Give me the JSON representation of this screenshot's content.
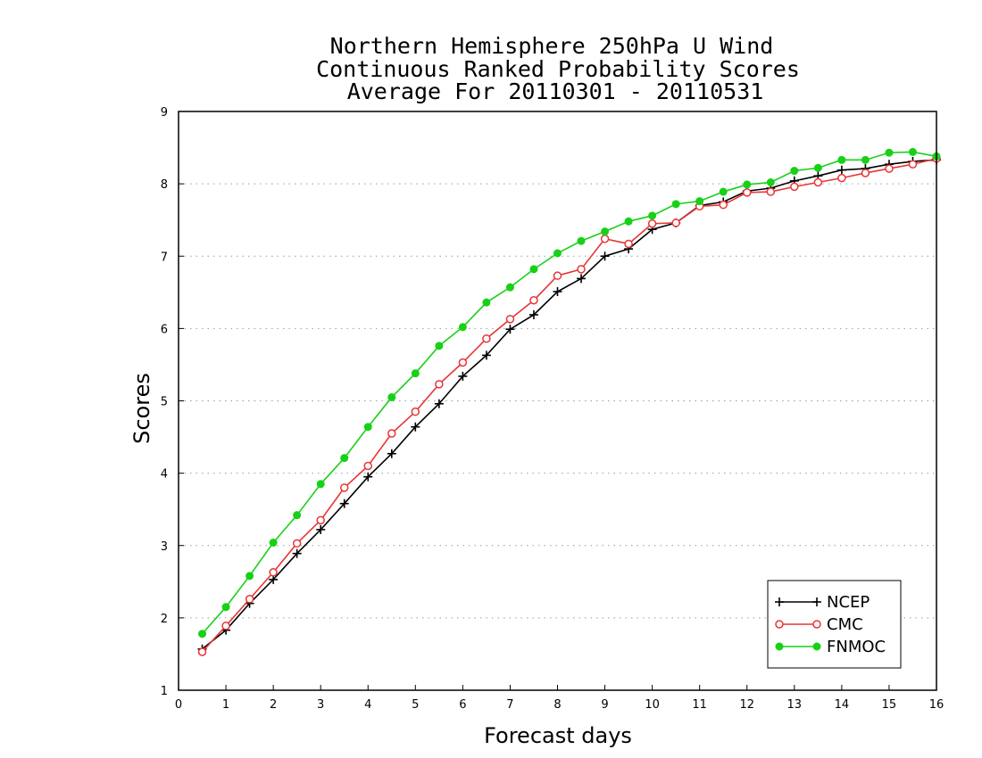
{
  "chart_data": {
    "type": "line",
    "title": [
      "Northern Hemisphere 250hPa U Wind",
      "Continuous Ranked Probability Scores",
      "Average For 20110301 - 20110531"
    ],
    "xlabel": "Forecast days",
    "ylabel": "Scores",
    "xlim": [
      0,
      16
    ],
    "ylim": [
      1,
      9
    ],
    "xticks": [
      "0",
      "1",
      "2",
      "3",
      "4",
      "5",
      "6",
      "7",
      "8",
      "9",
      "10",
      "11",
      "12",
      "13",
      "14",
      "15",
      "16"
    ],
    "yticks": [
      "1",
      "2",
      "3",
      "4",
      "5",
      "6",
      "7",
      "8",
      "9"
    ],
    "grid": "horizontal dotted",
    "legend_position": "bottom-right",
    "x": [
      0.5,
      1,
      1.5,
      2,
      2.5,
      3,
      3.5,
      4,
      4.5,
      5,
      5.5,
      6,
      6.5,
      7,
      7.5,
      8,
      8.5,
      9,
      9.5,
      10,
      10.5,
      11,
      11.5,
      12,
      12.5,
      13,
      13.5,
      14,
      14.5,
      15,
      15.5,
      16
    ],
    "series": [
      {
        "name": "NCEP",
        "color": "#000000",
        "marker": "plus",
        "values": [
          1.57,
          1.83,
          2.2,
          2.53,
          2.89,
          3.22,
          3.58,
          3.95,
          4.27,
          4.64,
          4.96,
          5.34,
          5.63,
          5.99,
          6.19,
          6.51,
          6.69,
          7.0,
          7.1,
          7.37,
          7.46,
          7.7,
          7.75,
          7.9,
          7.94,
          8.04,
          8.11,
          8.19,
          8.21,
          8.27,
          8.31,
          8.33
        ]
      },
      {
        "name": "CMC",
        "color": "#e83535",
        "marker": "open-circle",
        "values": [
          1.53,
          1.89,
          2.26,
          2.63,
          3.03,
          3.35,
          3.8,
          4.1,
          4.55,
          4.85,
          5.23,
          5.53,
          5.86,
          6.13,
          6.39,
          6.73,
          6.82,
          7.24,
          7.17,
          7.45,
          7.46,
          7.69,
          7.71,
          7.88,
          7.89,
          7.96,
          8.02,
          8.08,
          8.15,
          8.21,
          8.27,
          8.35
        ]
      },
      {
        "name": "FNMOC",
        "color": "#17d117",
        "marker": "filled-circle",
        "values": [
          1.78,
          2.15,
          2.58,
          3.04,
          3.42,
          3.85,
          4.21,
          4.64,
          5.05,
          5.38,
          5.76,
          6.02,
          6.36,
          6.57,
          6.82,
          7.04,
          7.21,
          7.34,
          7.48,
          7.56,
          7.72,
          7.76,
          7.89,
          7.99,
          8.02,
          8.18,
          8.22,
          8.33,
          8.33,
          8.43,
          8.44,
          8.38
        ]
      }
    ]
  }
}
